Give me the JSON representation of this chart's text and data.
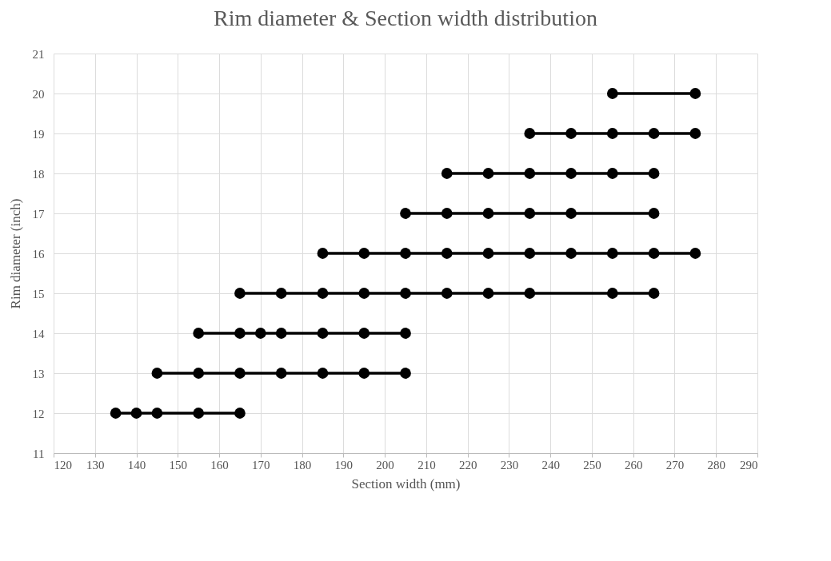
{
  "chart_data": {
    "type": "line",
    "title": "Rim diameter & Section width distribution",
    "xlabel": "Section width (mm)",
    "ylabel": "Rim diameter (inch)",
    "xlim": [
      120,
      290
    ],
    "xticks": [
      120,
      130,
      140,
      150,
      160,
      170,
      180,
      190,
      200,
      210,
      220,
      230,
      240,
      250,
      260,
      270,
      280,
      290
    ],
    "ylim": [
      11,
      21
    ],
    "yticks": [
      11,
      12,
      13,
      14,
      15,
      16,
      17,
      18,
      19,
      20,
      21
    ],
    "grid": true,
    "legend": false,
    "marker": "circle",
    "line_style": "solid",
    "series": [
      {
        "color": "#000000",
        "x": [
          135,
          140,
          145,
          155,
          165
        ],
        "values": [
          12,
          12,
          12,
          12,
          12
        ]
      },
      {
        "color": "#000000",
        "x": [
          145,
          155,
          165,
          175,
          185,
          195,
          205
        ],
        "values": [
          13,
          13,
          13,
          13,
          13,
          13,
          13
        ]
      },
      {
        "color": "#000000",
        "x": [
          155,
          165,
          170,
          175,
          185,
          195,
          205
        ],
        "values": [
          14,
          14,
          14,
          14,
          14,
          14,
          14
        ]
      },
      {
        "color": "#000000",
        "x": [
          165,
          175,
          185,
          195,
          205,
          215,
          225,
          235,
          255,
          265
        ],
        "values": [
          15,
          15,
          15,
          15,
          15,
          15,
          15,
          15,
          15,
          15
        ]
      },
      {
        "color": "#000000",
        "x": [
          185,
          195,
          205,
          215,
          225,
          235,
          245,
          255,
          265,
          275
        ],
        "values": [
          16,
          16,
          16,
          16,
          16,
          16,
          16,
          16,
          16,
          16
        ]
      },
      {
        "color": "#000000",
        "x": [
          205,
          215,
          225,
          235,
          245,
          265
        ],
        "values": [
          17,
          17,
          17,
          17,
          17,
          17
        ]
      },
      {
        "color": "#000000",
        "x": [
          215,
          225,
          235,
          245,
          255,
          265
        ],
        "values": [
          18,
          18,
          18,
          18,
          18,
          18
        ]
      },
      {
        "color": "#000000",
        "x": [
          235,
          245,
          255,
          265,
          275
        ],
        "values": [
          19,
          19,
          19,
          19,
          19
        ]
      },
      {
        "color": "#000000",
        "x": [
          255,
          275
        ],
        "values": [
          20,
          20
        ]
      }
    ]
  }
}
